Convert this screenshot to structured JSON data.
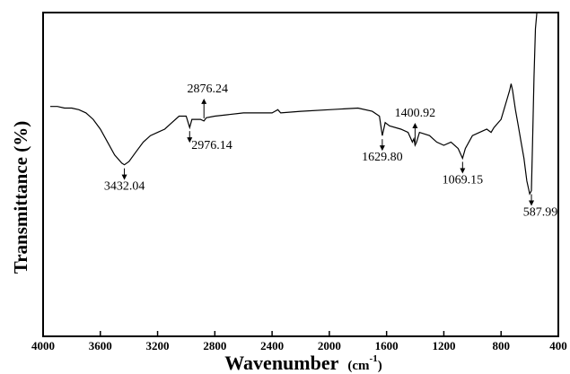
{
  "chart_data": {
    "type": "line",
    "title": "",
    "xlabel": "Wavenumber",
    "xlabel_unit_open": "(cm",
    "xlabel_unit_sup": "-1",
    "xlabel_unit_close": ")",
    "ylabel": "Transmittance (%)",
    "xlim": [
      4000,
      400
    ],
    "x_reversed": true,
    "y_ticks_shown": false,
    "grid": false,
    "x_ticks": [
      "4000",
      "3600",
      "3200",
      "2800",
      "2400",
      "2000",
      "1600",
      "1200",
      "800",
      "400"
    ],
    "series": [
      {
        "x": [
          3950,
          3900,
          3850,
          3800,
          3750,
          3700,
          3650,
          3600,
          3550,
          3500,
          3450,
          3432,
          3400,
          3350,
          3300,
          3250,
          3200,
          3150,
          3100,
          3050,
          3000,
          2976,
          2960,
          2900,
          2876,
          2860,
          2800,
          2700,
          2600,
          2500,
          2400,
          2380,
          2360,
          2340,
          2200,
          2000,
          1800,
          1700,
          1650,
          1630,
          1610,
          1580,
          1500,
          1450,
          1420,
          1410,
          1401,
          1390,
          1370,
          1300,
          1250,
          1200,
          1150,
          1100,
          1069,
          1050,
          1000,
          950,
          900,
          870,
          850,
          800,
          780,
          760,
          740,
          730,
          720,
          700,
          680,
          660,
          640,
          620,
          600,
          588,
          580,
          570,
          560,
          550
        ],
        "y": [
          29,
          29,
          29.5,
          29.5,
          30,
          31,
          33,
          36,
          40,
          44,
          46.5,
          47,
          46,
          43,
          40,
          38,
          37,
          36,
          34,
          32,
          32,
          35.5,
          33,
          33,
          33.5,
          32.5,
          32,
          31.5,
          31,
          31,
          31,
          30.5,
          30,
          31,
          30.5,
          30,
          29.5,
          30.5,
          32,
          38,
          34,
          35,
          36,
          37,
          40,
          39,
          41,
          40,
          37,
          38,
          40,
          41,
          40,
          42,
          45,
          42,
          38,
          37,
          36,
          37,
          35.5,
          33,
          30,
          27,
          24,
          22,
          24,
          30,
          35,
          40,
          45,
          52,
          56,
          55,
          40,
          20,
          5,
          0
        ],
        "ylim": [
          100,
          0
        ]
      }
    ],
    "annotations": [
      {
        "text": "3432.04",
        "x": 3432
      },
      {
        "text": "2976.14",
        "x": 2976
      },
      {
        "text": "2876.24",
        "x": 2876
      },
      {
        "text": "1629.80",
        "x": 1630
      },
      {
        "text": "1400.92",
        "x": 1401
      },
      {
        "text": "1069.15",
        "x": 1069
      },
      {
        "text": "587.99",
        "x": 588
      }
    ]
  }
}
